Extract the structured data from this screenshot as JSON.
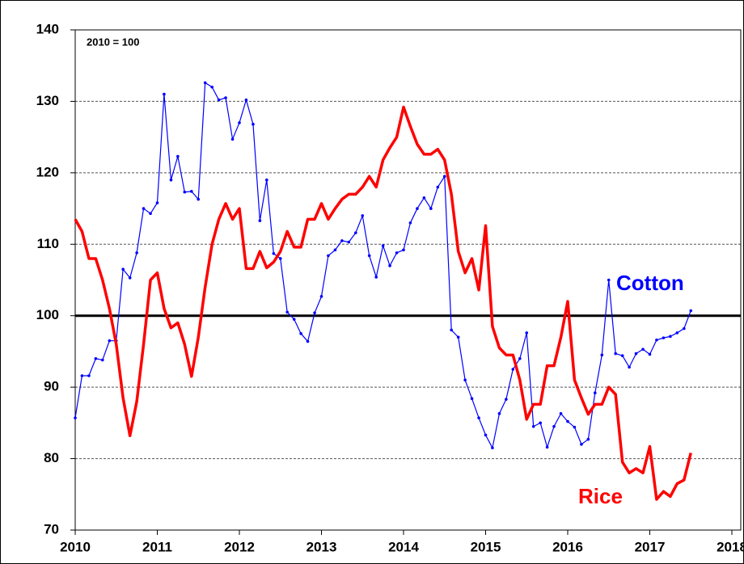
{
  "chart_data": {
    "type": "line",
    "annotation": "2010 = 100",
    "reference_line": 100,
    "x": [
      2010,
      2010.083,
      2010.167,
      2010.25,
      2010.333,
      2010.417,
      2010.5,
      2010.583,
      2010.667,
      2010.75,
      2010.833,
      2010.917,
      2011,
      2011.083,
      2011.167,
      2011.25,
      2011.333,
      2011.417,
      2011.5,
      2011.583,
      2011.667,
      2011.75,
      2011.833,
      2011.917,
      2012,
      2012.083,
      2012.167,
      2012.25,
      2012.333,
      2012.417,
      2012.5,
      2012.583,
      2012.667,
      2012.75,
      2012.833,
      2012.917,
      2013,
      2013.083,
      2013.167,
      2013.25,
      2013.333,
      2013.417,
      2013.5,
      2013.583,
      2013.667,
      2013.75,
      2013.833,
      2013.917,
      2014,
      2014.083,
      2014.167,
      2014.25,
      2014.333,
      2014.417,
      2014.5,
      2014.583,
      2014.667,
      2014.75,
      2014.833,
      2014.917,
      2015,
      2015.083,
      2015.167,
      2015.25,
      2015.333,
      2015.417,
      2015.5,
      2015.583,
      2015.667,
      2015.75,
      2015.833,
      2015.917,
      2016,
      2016.083,
      2016.167,
      2016.25,
      2016.333,
      2016.417,
      2016.5,
      2016.583,
      2016.667,
      2016.75,
      2016.833,
      2016.917,
      2017,
      2017.083,
      2017.167,
      2017.25,
      2017.333,
      2017.417,
      2017.5
    ],
    "series": [
      {
        "name": "Cotton",
        "color": "#0000ff",
        "values": [
          85.7,
          91.6,
          91.6,
          94,
          93.8,
          96.5,
          96.5,
          106.5,
          105.3,
          108.8,
          115,
          114.3,
          115.8,
          131,
          119,
          122.3,
          117.3,
          117.4,
          116.3,
          132.6,
          132,
          130.2,
          130.5,
          124.7,
          127,
          130.2,
          126.8,
          113.3,
          119,
          108.7,
          108,
          100.5,
          99.5,
          97.5,
          96.4,
          100.4,
          102.7,
          108.4,
          109.2,
          110.5,
          110.3,
          111.6,
          114,
          108.4,
          105.4,
          109.8,
          107,
          108.8,
          109.2,
          113,
          115,
          116.5,
          115,
          118,
          119.5,
          98,
          97,
          91,
          88.4,
          85.7,
          83.3,
          81.5,
          86.3,
          88.3,
          92.5,
          94,
          97.6,
          84.5,
          85,
          81.6,
          84.5,
          86.3,
          85.2,
          84.4,
          82,
          82.7,
          89.2,
          94.5,
          105,
          94.7,
          94.4,
          92.8,
          94.7,
          95.3,
          94.6,
          96.6,
          96.9,
          97.1,
          97.6,
          98.2,
          100.7
        ]
      },
      {
        "name": "Rice",
        "color": "#ff0000",
        "values": [
          113.5,
          111.8,
          108,
          108,
          105,
          101,
          96,
          88.5,
          83.2,
          88,
          96,
          105,
          106,
          101,
          98.3,
          99,
          96,
          91.5,
          97,
          104,
          110,
          113.5,
          115.7,
          113.5,
          115,
          106.6,
          106.6,
          109,
          106.7,
          107.5,
          109,
          111.8,
          109.6,
          109.6,
          113.5,
          113.5,
          115.7,
          113.5,
          115,
          116.3,
          117,
          117,
          118,
          119.5,
          118,
          121.8,
          123.5,
          125,
          129.2,
          126.5,
          124,
          122.6,
          122.6,
          123.3,
          121.8,
          117,
          109,
          106,
          108,
          103.6,
          112.6,
          98.5,
          95.5,
          94.5,
          94.5,
          91,
          85.5,
          87.6,
          87.6,
          93,
          93,
          97,
          102,
          91,
          88.5,
          86.2,
          87.6,
          87.6,
          90,
          89,
          79.5,
          78,
          78.6,
          78,
          81.7,
          74.3,
          75.4,
          74.7,
          76.5,
          77,
          80.8
        ]
      }
    ],
    "xlim": [
      2010,
      2018
    ],
    "xticks": [
      2010,
      2011,
      2012,
      2013,
      2014,
      2015,
      2016,
      2017,
      2018
    ],
    "ylim": [
      70,
      140
    ],
    "yticks": [
      70,
      80,
      90,
      100,
      110,
      120,
      130,
      140
    ],
    "grid": true
  }
}
